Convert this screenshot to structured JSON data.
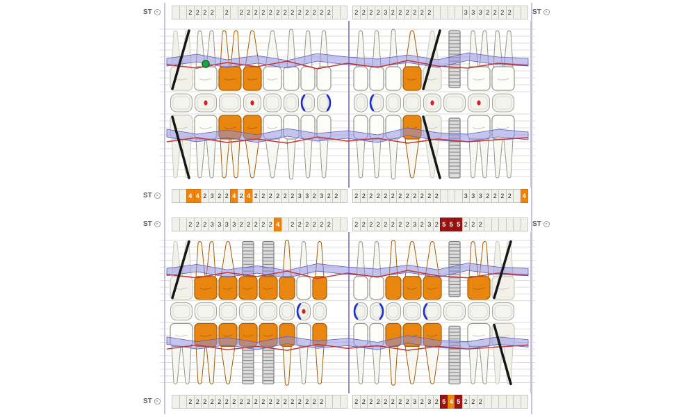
{
  "labels": {
    "st": "ST"
  },
  "colors": {
    "cell_orange": "#ee850a",
    "cell_dark_red": "#9c1412",
    "crown_orange": "#e8860f",
    "gum_band_blue": "#8c8ce1",
    "gum_line_red": "#c23434",
    "divider_purple": "#9b86c9",
    "bracket_blue": "#1b2fd0",
    "marker_green": "#1fa33c"
  },
  "rows": {
    "upper_top": {
      "left": [
        "",
        "",
        "2",
        "2",
        "2",
        "2",
        "",
        "2",
        "",
        "2",
        "2",
        "2",
        "2",
        "2",
        "2",
        "2",
        "2",
        "2",
        "2",
        "2",
        "2",
        "2",
        "",
        ""
      ],
      "right": [
        "2",
        "2",
        "2",
        "2",
        "3",
        "2",
        "2",
        "2",
        "2",
        "2",
        "2",
        "",
        "",
        "",
        "",
        "3",
        "3",
        "3",
        "2",
        "2",
        "2",
        "2",
        "",
        ""
      ]
    },
    "upper_bottom": {
      "left": [
        "",
        "",
        "4o",
        "4o",
        "2",
        "3",
        "2",
        "2",
        "4o",
        "2",
        "4o",
        "2",
        "2",
        "2",
        "2",
        "2",
        "2",
        "3",
        "3",
        "2",
        "3",
        "2",
        "2",
        ""
      ],
      "right": [
        "2",
        "2",
        "2",
        "2",
        "2",
        "2",
        "2",
        "2",
        "2",
        "2",
        "2",
        "2",
        "",
        "",
        "",
        "3",
        "3",
        "3",
        "2",
        "2",
        "2",
        "2",
        "",
        "4o"
      ]
    },
    "lower_top": {
      "left": [
        "",
        "",
        "2",
        "2",
        "2",
        "3",
        "3",
        "3",
        "3",
        "2",
        "2",
        "2",
        "2",
        "2",
        "4o",
        "",
        "2",
        "2",
        "2",
        "2",
        "2",
        "2",
        "",
        ""
      ],
      "right": [
        "2",
        "2",
        "2",
        "2",
        "2",
        "2",
        "2",
        "2",
        "3",
        "2",
        "3",
        "2",
        "5r",
        "5r",
        "5r",
        "2",
        "2",
        "2",
        "",
        "",
        "",
        "",
        "",
        ""
      ]
    },
    "lower_bottom": {
      "left": [
        "",
        "",
        "2",
        "2",
        "2",
        "2",
        "2",
        "2",
        "2",
        "2",
        "2",
        "2",
        "2",
        "2",
        "2",
        "2",
        "2",
        "2",
        "2",
        "2",
        "2",
        "",
        "",
        ""
      ],
      "right": [
        "2",
        "2",
        "2",
        "2",
        "2",
        "2",
        "2",
        "2",
        "3",
        "2",
        "3",
        "2",
        "5r",
        "4o",
        "5r",
        "2",
        "2",
        "2",
        "",
        "",
        "",
        "",
        "",
        ""
      ]
    }
  },
  "upper_teeth": [
    {
      "k": "molar",
      "t": "missing",
      "b": "missing",
      "o": "normal"
    },
    {
      "k": "molar",
      "t": "normal",
      "b": "normal",
      "o": "dot",
      "m": "green"
    },
    {
      "k": "molar",
      "t": "crown",
      "b": "crown",
      "o": "normal"
    },
    {
      "k": "premolar",
      "t": "crown",
      "b": "crown",
      "o": "dot"
    },
    {
      "k": "premolar",
      "t": "normal",
      "b": "normal",
      "o": "normal"
    },
    {
      "k": "canine",
      "t": "normal",
      "b": "normal",
      "o": "normal"
    },
    {
      "k": "incisor",
      "t": "normal",
      "b": "normal",
      "o": "bracketL"
    },
    {
      "k": "incisor",
      "t": "normal",
      "b": "normal",
      "o": "bracketR"
    },
    {
      "k": "incisor",
      "t": "normal",
      "b": "normal",
      "o": "normal"
    },
    {
      "k": "incisor",
      "t": "normal",
      "b": "normal",
      "o": "bracketL"
    },
    {
      "k": "canine",
      "t": "normal",
      "b": "normal",
      "o": "normal"
    },
    {
      "k": "premolar",
      "t": "crown",
      "b": "crown",
      "o": "normal"
    },
    {
      "k": "premolar",
      "t": "missing",
      "b": "missing",
      "o": "dot"
    },
    {
      "k": "molar",
      "t": "implant",
      "b": "implant",
      "o": "normal"
    },
    {
      "k": "molar",
      "t": "normal",
      "b": "normal",
      "o": "dot"
    },
    {
      "k": "molar",
      "t": "normal",
      "b": "normal",
      "o": "normal"
    }
  ],
  "lower_teeth": [
    {
      "k": "molar",
      "t": "missing",
      "b": "normal",
      "o": "normal"
    },
    {
      "k": "molar",
      "t": "crown",
      "b": "crown",
      "o": "normal"
    },
    {
      "k": "premolar",
      "t": "crown",
      "b": "crown",
      "o": "normal"
    },
    {
      "k": "premolar",
      "t": "implant-crown",
      "b": "implant-crown",
      "o": "normal"
    },
    {
      "k": "premolar",
      "t": "implant-crown",
      "b": "implant-crown",
      "o": "normal"
    },
    {
      "k": "canine",
      "t": "crown",
      "b": "crown",
      "o": "normal"
    },
    {
      "k": "incisor",
      "t": "normal",
      "b": "normal",
      "o": "bracketL,dot"
    },
    {
      "k": "incisor",
      "t": "crown",
      "b": "crown",
      "o": "normal"
    },
    {
      "k": "incisor",
      "t": "normal",
      "b": "normal",
      "o": "bracketL"
    },
    {
      "k": "incisor",
      "t": "normal",
      "b": "normal",
      "o": "bracketR"
    },
    {
      "k": "canine",
      "t": "crown",
      "b": "crown",
      "o": "normal"
    },
    {
      "k": "premolar",
      "t": "crown",
      "b": "crown",
      "o": "normal"
    },
    {
      "k": "premolar",
      "t": "crown",
      "b": "crown",
      "o": "bracketL"
    },
    {
      "k": "molar",
      "t": "implant",
      "b": "implant",
      "o": "normal"
    },
    {
      "k": "molar",
      "t": "crown",
      "b": "normal",
      "o": "normal"
    },
    {
      "k": "molar",
      "t": "missing",
      "b": "missing",
      "o": "normal"
    }
  ]
}
